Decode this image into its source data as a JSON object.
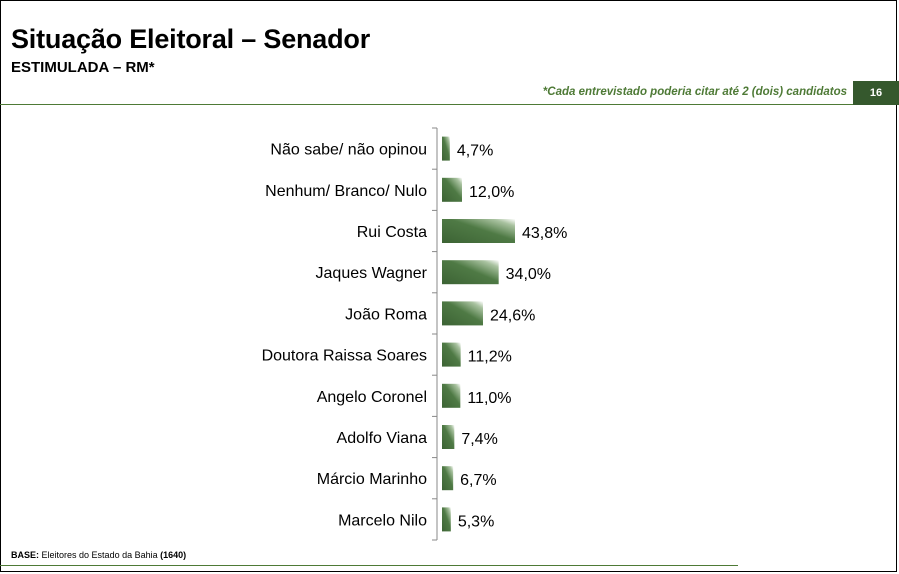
{
  "header": {
    "title": "Situação Eleitoral – Senador",
    "subtitle": "ESTIMULADA – RM*",
    "note": "*Cada entrevistado poderia citar até 2 (dois) candidatos",
    "page_number": "16"
  },
  "footer": {
    "base_label": "BASE:",
    "base_text": "Eleitores do Estado da Bahia",
    "base_n": "(1640)"
  },
  "colors": {
    "bar_dark": "#3c6334",
    "bar_light": "#ffffff",
    "accent": "#4e7a36"
  },
  "chart_data": {
    "type": "bar",
    "orientation": "horizontal",
    "categories": [
      "Não sabe/ não opinou",
      "Nenhum/ Branco/ Nulo",
      "Rui Costa",
      "Jaques Wagner",
      "João Roma",
      "Doutora Raissa Soares",
      "Angelo Coronel",
      "Adolfo Viana",
      "Márcio Marinho",
      "Marcelo Nilo"
    ],
    "values": [
      4.7,
      12.0,
      43.8,
      34.0,
      24.6,
      11.2,
      11.0,
      7.4,
      6.7,
      5.3
    ],
    "value_labels": [
      "4,7%",
      "12,0%",
      "43,8%",
      "34,0%",
      "24,6%",
      "11,2%",
      "11,0%",
      "7,4%",
      "6,7%",
      "5,3%"
    ],
    "xlim": [
      0,
      45
    ],
    "grid": false,
    "legend": "none"
  }
}
